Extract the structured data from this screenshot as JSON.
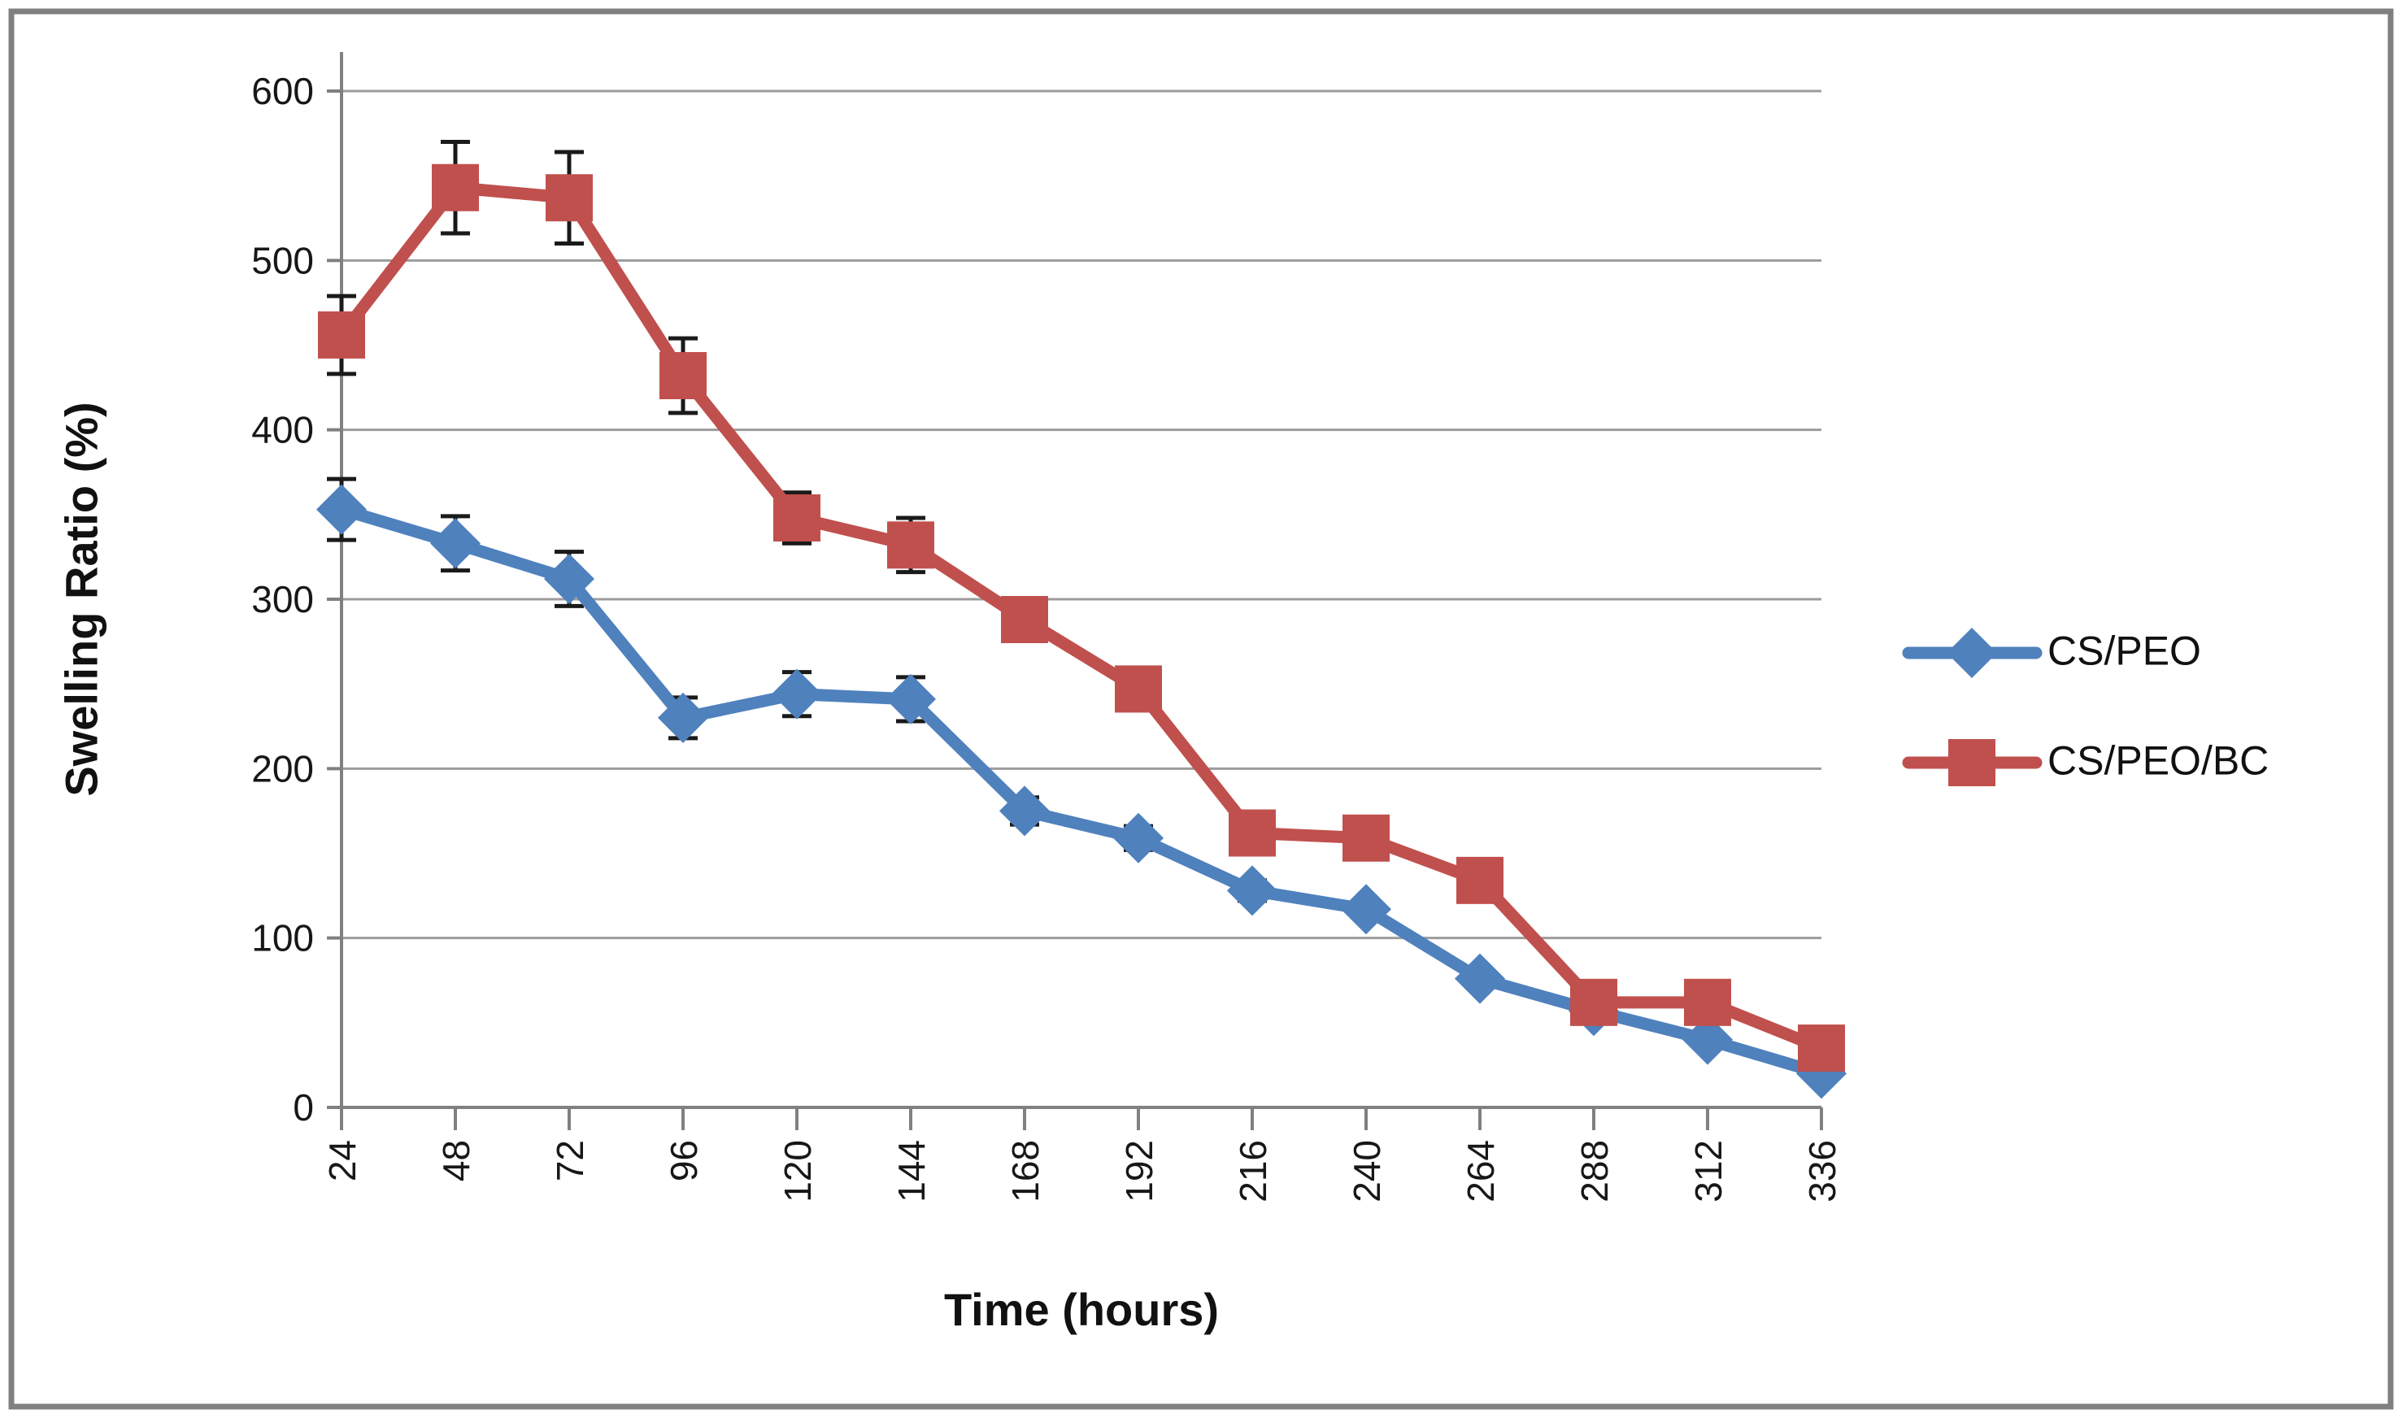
{
  "chart_data": {
    "type": "line",
    "x": [
      24,
      48,
      72,
      96,
      120,
      144,
      168,
      192,
      216,
      240,
      264,
      288,
      312,
      336
    ],
    "xlabel": "Time (hours)",
    "ylabel": "Swelling Ratio (%)",
    "ylim": [
      0,
      600
    ],
    "ytick_step": 100,
    "grid": true,
    "legend_position": "right-middle",
    "series": [
      {
        "name": "CS/PEO",
        "color": "#4F81BD",
        "marker": "diamond",
        "values": [
          353,
          333,
          312,
          230,
          244,
          241,
          175,
          159,
          128,
          117,
          76,
          57,
          40,
          20
        ],
        "errors": [
          18,
          16,
          16,
          12,
          13,
          13,
          8,
          7,
          6,
          5,
          5,
          4,
          4,
          3
        ]
      },
      {
        "name": "CS/PEO/BC",
        "color": "#C0504D",
        "marker": "square",
        "values": [
          456,
          543,
          537,
          432,
          348,
          332,
          288,
          247,
          162,
          159,
          134,
          62,
          62,
          35
        ],
        "errors": [
          23,
          27,
          27,
          22,
          15,
          16,
          12,
          8,
          5,
          5,
          5,
          4,
          4,
          3
        ]
      }
    ]
  },
  "frame": {
    "border_color": "#808080",
    "grid_color": "#9C9C9C",
    "axis_color": "#808080",
    "error_bar_color": "#1A1A1A",
    "text_color": "#171717"
  }
}
